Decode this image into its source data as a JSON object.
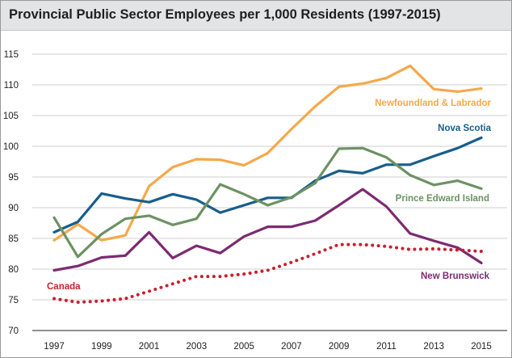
{
  "chart_data": {
    "type": "line",
    "title": "Provincial Public Sector Employees per 1,000 Residents (1997-2015)",
    "xlabel": "",
    "ylabel": "",
    "x": [
      1997,
      1998,
      1999,
      2000,
      2001,
      2002,
      2003,
      2004,
      2005,
      2006,
      2007,
      2008,
      2009,
      2010,
      2011,
      2012,
      2013,
      2014,
      2015
    ],
    "xtick_labels": [
      "1997",
      "1999",
      "2001",
      "2003",
      "2005",
      "2007",
      "2009",
      "2011",
      "2013",
      "2015"
    ],
    "ylim": [
      70,
      115
    ],
    "yticks": [
      70,
      75,
      80,
      85,
      90,
      95,
      100,
      105,
      110,
      115
    ],
    "grid": true,
    "series": [
      {
        "name": "Newfoundland & Labrador",
        "color": "#f4a94b",
        "style": "solid",
        "label_pos": "right",
        "values": [
          84.7,
          87.3,
          84.7,
          85.5,
          93.5,
          96.6,
          97.9,
          97.8,
          96.9,
          98.9,
          102.8,
          106.5,
          109.7,
          110.2,
          111.1,
          113.1,
          109.3,
          108.9,
          109.4
        ]
      },
      {
        "name": "Nova Scotia",
        "color": "#175e8c",
        "style": "solid",
        "label_pos": "right",
        "values": [
          86.0,
          87.7,
          92.3,
          91.5,
          90.9,
          92.2,
          91.3,
          89.2,
          90.4,
          91.6,
          91.6,
          94.4,
          96.0,
          95.6,
          97.0,
          97.0,
          98.4,
          99.7,
          101.4
        ]
      },
      {
        "name": "Prince Edward Island",
        "color": "#6d9263",
        "style": "solid",
        "label_pos": "right",
        "values": [
          88.4,
          82.0,
          85.7,
          88.2,
          88.7,
          87.2,
          88.2,
          93.8,
          92.2,
          90.4,
          91.7,
          94.0,
          99.6,
          99.7,
          98.2,
          95.3,
          93.7,
          94.4,
          93.1
        ]
      },
      {
        "name": "New Brunswick",
        "color": "#7d2a72",
        "style": "solid",
        "label_pos": "right",
        "values": [
          79.8,
          80.5,
          81.9,
          82.2,
          86.0,
          81.8,
          83.8,
          82.6,
          85.3,
          86.9,
          86.9,
          87.9,
          90.4,
          93.0,
          90.2,
          85.8,
          84.6,
          83.5,
          81.0
        ]
      },
      {
        "name": "Canada",
        "color": "#c8202f",
        "style": "dotted",
        "label_pos": "left",
        "values": [
          75.2,
          74.6,
          74.8,
          75.2,
          76.4,
          77.6,
          78.8,
          78.8,
          79.2,
          79.8,
          81.1,
          82.5,
          84.0,
          84.0,
          83.7,
          83.2,
          83.3,
          83.1,
          82.9
        ]
      }
    ]
  }
}
